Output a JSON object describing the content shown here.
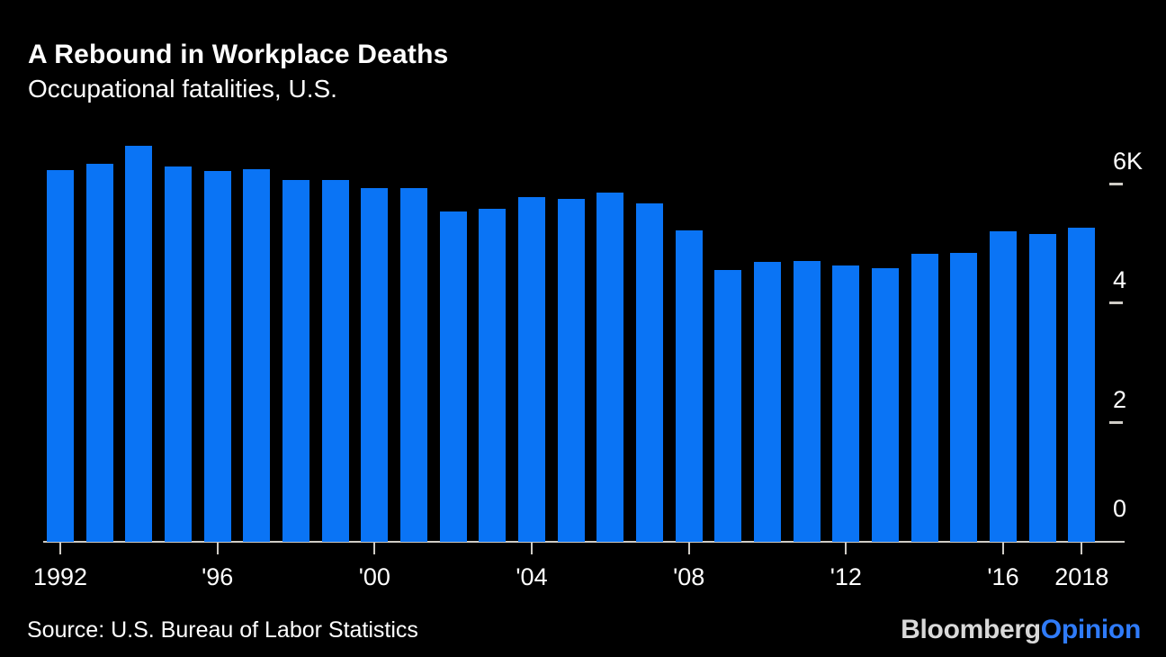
{
  "header": {
    "title": "A Rebound in Workplace Deaths",
    "subtitle": "Occupational fatalities, U.S."
  },
  "footer": {
    "source": "Source: U.S. Bureau of Labor Statistics",
    "logo": {
      "brand": "Bloomberg",
      "suffix": "Opinion"
    }
  },
  "colors": {
    "background": "#000000",
    "bar": "#0A74F5",
    "axis_line": "#CFCCC6",
    "text": "#FFFFFF",
    "logo_brand": "#D9D9D9",
    "logo_suffix": "#2F7BFA"
  },
  "chart_data": {
    "type": "bar",
    "title": "A Rebound in Workplace Deaths",
    "subtitle": "Occupational fatalities, U.S.",
    "xlabel": "",
    "ylabel": "",
    "x": [
      1992,
      1993,
      1994,
      1995,
      1996,
      1997,
      1998,
      1999,
      2000,
      2001,
      2002,
      2003,
      2004,
      2005,
      2006,
      2007,
      2008,
      2009,
      2010,
      2011,
      2012,
      2013,
      2014,
      2015,
      2016,
      2017,
      2018
    ],
    "values": [
      6217,
      6331,
      6632,
      6275,
      6202,
      6238,
      6055,
      6054,
      5920,
      5915,
      5534,
      5575,
      5764,
      5734,
      5840,
      5657,
      5214,
      4551,
      4690,
      4693,
      4628,
      4585,
      4821,
      4836,
      5190,
      5147,
      5250
    ],
    "ylim": [
      0,
      6000
    ],
    "grid": false,
    "legend": null,
    "y_axis_side": "right",
    "y_ticks": [
      {
        "value": 6000,
        "label": "6K"
      },
      {
        "value": 4000,
        "label": "4"
      },
      {
        "value": 2000,
        "label": "2"
      },
      {
        "value": 0,
        "label": "0"
      }
    ],
    "x_ticks": [
      {
        "index": 0,
        "label": "1992"
      },
      {
        "index": 4,
        "label": "'96"
      },
      {
        "index": 8,
        "label": "'00"
      },
      {
        "index": 12,
        "label": "'04"
      },
      {
        "index": 16,
        "label": "'08"
      },
      {
        "index": 20,
        "label": "'12"
      },
      {
        "index": 24,
        "label": "'16"
      },
      {
        "index": 26,
        "label": "2018"
      }
    ]
  }
}
